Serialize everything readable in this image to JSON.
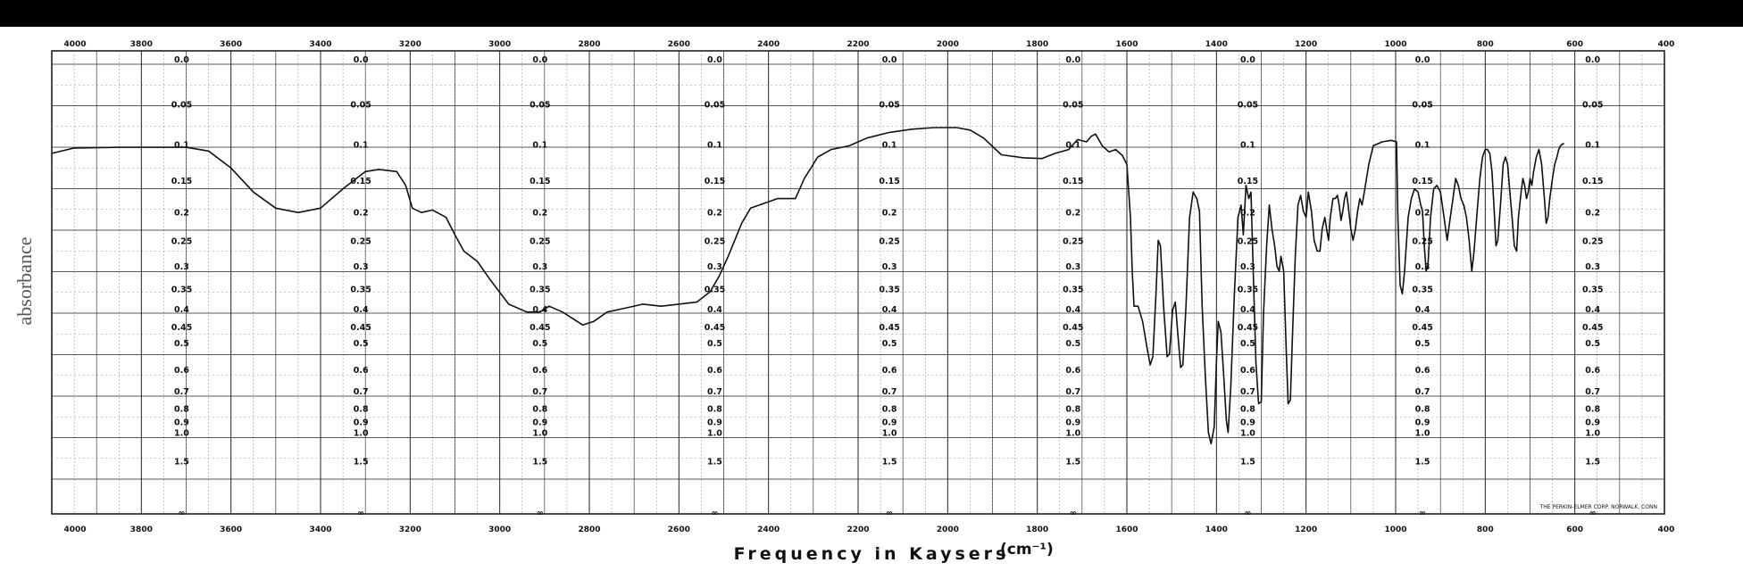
{
  "chart_data": {
    "type": "line",
    "title": "",
    "xlabel": "Frequency in Kaysers",
    "xlabel_unit": "(cm⁻¹)",
    "ylabel": "absorbance",
    "credit": "THE PERKIN-ELMER CORP. NORWALK, CONN",
    "x_reversed": true,
    "xlim": [
      4000,
      400
    ],
    "x_ticks": [
      4000,
      3800,
      3600,
      3400,
      3200,
      3000,
      2800,
      2600,
      2400,
      2200,
      2000,
      1800,
      1600,
      1400,
      1200,
      1000,
      800,
      600,
      400
    ],
    "y_ticks": [
      {
        "label": "0.0",
        "v": 0.0
      },
      {
        "label": "0.05",
        "v": 0.05
      },
      {
        "label": "0.1",
        "v": 0.1
      },
      {
        "label": "0.15",
        "v": 0.15
      },
      {
        "label": "0.2",
        "v": 0.2
      },
      {
        "label": "0.25",
        "v": 0.25
      },
      {
        "label": "0.3",
        "v": 0.3
      },
      {
        "label": "0.35",
        "v": 0.35
      },
      {
        "label": "0.4",
        "v": 0.4
      },
      {
        "label": "0.45",
        "v": 0.45
      },
      {
        "label": "0.5",
        "v": 0.5
      },
      {
        "label": "0.6",
        "v": 0.6
      },
      {
        "label": "0.7",
        "v": 0.7
      },
      {
        "label": "0.8",
        "v": 0.8
      },
      {
        "label": "0.9",
        "v": 0.9
      },
      {
        "label": "1.0",
        "v": 1.0
      },
      {
        "label": "1.5",
        "v": 1.5
      },
      {
        "label": "∞",
        "v": 2.0
      }
    ],
    "y_label_columns_at_x": [
      3710,
      3310,
      2910,
      2520,
      2130,
      1720,
      1330,
      940,
      560
    ],
    "grid": true,
    "series": [
      {
        "color": "#111111",
        "points": [
          [
            4000,
            0.105
          ],
          [
            3950,
            0.098
          ],
          [
            3850,
            0.097
          ],
          [
            3750,
            0.097
          ],
          [
            3700,
            0.097
          ],
          [
            3650,
            0.102
          ],
          [
            3600,
            0.125
          ],
          [
            3550,
            0.16
          ],
          [
            3500,
            0.185
          ],
          [
            3450,
            0.192
          ],
          [
            3400,
            0.185
          ],
          [
            3350,
            0.155
          ],
          [
            3300,
            0.13
          ],
          [
            3270,
            0.127
          ],
          [
            3230,
            0.13
          ],
          [
            3210,
            0.15
          ],
          [
            3195,
            0.185
          ],
          [
            3175,
            0.192
          ],
          [
            3150,
            0.188
          ],
          [
            3120,
            0.2
          ],
          [
            3100,
            0.23
          ],
          [
            3080,
            0.26
          ],
          [
            3050,
            0.28
          ],
          [
            3020,
            0.32
          ],
          [
            2980,
            0.375
          ],
          [
            2940,
            0.395
          ],
          [
            2910,
            0.395
          ],
          [
            2890,
            0.38
          ],
          [
            2860,
            0.395
          ],
          [
            2840,
            0.41
          ],
          [
            2815,
            0.43
          ],
          [
            2790,
            0.42
          ],
          [
            2760,
            0.395
          ],
          [
            2720,
            0.385
          ],
          [
            2680,
            0.375
          ],
          [
            2640,
            0.38
          ],
          [
            2600,
            0.375
          ],
          [
            2560,
            0.37
          ],
          [
            2530,
            0.345
          ],
          [
            2510,
            0.31
          ],
          [
            2490,
            0.27
          ],
          [
            2460,
            0.21
          ],
          [
            2440,
            0.185
          ],
          [
            2420,
            0.18
          ],
          [
            2380,
            0.17
          ],
          [
            2340,
            0.17
          ],
          [
            2320,
            0.14
          ],
          [
            2290,
            0.11
          ],
          [
            2260,
            0.1
          ],
          [
            2220,
            0.095
          ],
          [
            2180,
            0.085
          ],
          [
            2130,
            0.078
          ],
          [
            2080,
            0.074
          ],
          [
            2030,
            0.072
          ],
          [
            1980,
            0.072
          ],
          [
            1950,
            0.075
          ],
          [
            1920,
            0.085
          ],
          [
            1880,
            0.107
          ],
          [
            1830,
            0.111
          ],
          [
            1790,
            0.112
          ],
          [
            1760,
            0.105
          ],
          [
            1730,
            0.1
          ],
          [
            1710,
            0.087
          ],
          [
            1690,
            0.09
          ],
          [
            1680,
            0.083
          ],
          [
            1670,
            0.08
          ],
          [
            1655,
            0.095
          ],
          [
            1640,
            0.103
          ],
          [
            1625,
            0.1
          ],
          [
            1610,
            0.108
          ],
          [
            1600,
            0.12
          ],
          [
            1592,
            0.2
          ],
          [
            1588,
            0.3
          ],
          [
            1584,
            0.38
          ],
          [
            1575,
            0.38
          ],
          [
            1565,
            0.42
          ],
          [
            1555,
            0.5
          ],
          [
            1548,
            0.56
          ],
          [
            1542,
            0.53
          ],
          [
            1535,
            0.35
          ],
          [
            1530,
            0.24
          ],
          [
            1525,
            0.25
          ],
          [
            1518,
            0.38
          ],
          [
            1510,
            0.53
          ],
          [
            1505,
            0.52
          ],
          [
            1498,
            0.39
          ],
          [
            1492,
            0.37
          ],
          [
            1486,
            0.46
          ],
          [
            1480,
            0.57
          ],
          [
            1475,
            0.56
          ],
          [
            1468,
            0.38
          ],
          [
            1460,
            0.2
          ],
          [
            1452,
            0.16
          ],
          [
            1444,
            0.17
          ],
          [
            1438,
            0.19
          ],
          [
            1432,
            0.38
          ],
          [
            1425,
            0.6
          ],
          [
            1418,
            0.95
          ],
          [
            1412,
            1.07
          ],
          [
            1405,
            0.9
          ],
          [
            1400,
            0.55
          ],
          [
            1396,
            0.42
          ],
          [
            1390,
            0.45
          ],
          [
            1384,
            0.6
          ],
          [
            1378,
            0.85
          ],
          [
            1374,
            0.95
          ],
          [
            1368,
            0.65
          ],
          [
            1360,
            0.35
          ],
          [
            1352,
            0.2
          ],
          [
            1345,
            0.18
          ],
          [
            1340,
            0.23
          ],
          [
            1334,
            0.15
          ],
          [
            1328,
            0.17
          ],
          [
            1323,
            0.16
          ],
          [
            1318,
            0.3
          ],
          [
            1312,
            0.55
          ],
          [
            1306,
            0.74
          ],
          [
            1300,
            0.73
          ],
          [
            1295,
            0.4
          ],
          [
            1288,
            0.25
          ],
          [
            1282,
            0.18
          ],
          [
            1276,
            0.22
          ],
          [
            1270,
            0.25
          ],
          [
            1265,
            0.29
          ],
          [
            1260,
            0.3
          ],
          [
            1256,
            0.27
          ],
          [
            1250,
            0.3
          ],
          [
            1244,
            0.52
          ],
          [
            1240,
            0.74
          ],
          [
            1235,
            0.72
          ],
          [
            1230,
            0.45
          ],
          [
            1224,
            0.27
          ],
          [
            1218,
            0.18
          ],
          [
            1212,
            0.165
          ],
          [
            1206,
            0.19
          ],
          [
            1200,
            0.2
          ],
          [
            1195,
            0.16
          ],
          [
            1188,
            0.19
          ],
          [
            1182,
            0.24
          ],
          [
            1175,
            0.26
          ],
          [
            1169,
            0.26
          ],
          [
            1164,
            0.22
          ],
          [
            1158,
            0.2
          ],
          [
            1154,
            0.22
          ],
          [
            1150,
            0.24
          ],
          [
            1146,
            0.2
          ],
          [
            1140,
            0.17
          ],
          [
            1135,
            0.17
          ],
          [
            1130,
            0.165
          ],
          [
            1126,
            0.18
          ],
          [
            1122,
            0.205
          ],
          [
            1118,
            0.19
          ],
          [
            1114,
            0.17
          ],
          [
            1110,
            0.16
          ],
          [
            1106,
            0.18
          ],
          [
            1100,
            0.22
          ],
          [
            1095,
            0.24
          ],
          [
            1090,
            0.22
          ],
          [
            1085,
            0.19
          ],
          [
            1080,
            0.17
          ],
          [
            1075,
            0.18
          ],
          [
            1070,
            0.16
          ],
          [
            1060,
            0.12
          ],
          [
            1050,
            0.095
          ],
          [
            1030,
            0.09
          ],
          [
            1010,
            0.088
          ],
          [
            998,
            0.09
          ],
          [
            995,
            0.2
          ],
          [
            990,
            0.33
          ],
          [
            985,
            0.35
          ],
          [
            980,
            0.3
          ],
          [
            972,
            0.2
          ],
          [
            965,
            0.17
          ],
          [
            958,
            0.155
          ],
          [
            950,
            0.16
          ],
          [
            944,
            0.18
          ],
          [
            940,
            0.19
          ],
          [
            936,
            0.25
          ],
          [
            932,
            0.3
          ],
          [
            928,
            0.29
          ],
          [
            922,
            0.2
          ],
          [
            915,
            0.155
          ],
          [
            908,
            0.15
          ],
          [
            900,
            0.16
          ],
          [
            892,
            0.2
          ],
          [
            885,
            0.24
          ],
          [
            878,
            0.2
          ],
          [
            872,
            0.17
          ],
          [
            866,
            0.14
          ],
          [
            860,
            0.15
          ],
          [
            854,
            0.17
          ],
          [
            848,
            0.18
          ],
          [
            842,
            0.2
          ],
          [
            836,
            0.24
          ],
          [
            830,
            0.3
          ],
          [
            825,
            0.26
          ],
          [
            818,
            0.19
          ],
          [
            812,
            0.14
          ],
          [
            806,
            0.11
          ],
          [
            800,
            0.1
          ],
          [
            795,
            0.1
          ],
          [
            790,
            0.105
          ],
          [
            785,
            0.13
          ],
          [
            780,
            0.19
          ],
          [
            776,
            0.25
          ],
          [
            772,
            0.24
          ],
          [
            766,
            0.18
          ],
          [
            760,
            0.12
          ],
          [
            755,
            0.11
          ],
          [
            750,
            0.12
          ],
          [
            745,
            0.16
          ],
          [
            740,
            0.2
          ],
          [
            735,
            0.25
          ],
          [
            730,
            0.26
          ],
          [
            726,
            0.2
          ],
          [
            720,
            0.16
          ],
          [
            716,
            0.14
          ],
          [
            712,
            0.15
          ],
          [
            708,
            0.17
          ],
          [
            704,
            0.16
          ],
          [
            700,
            0.14
          ],
          [
            696,
            0.15
          ],
          [
            692,
            0.13
          ],
          [
            686,
            0.11
          ],
          [
            680,
            0.1
          ],
          [
            674,
            0.12
          ],
          [
            668,
            0.17
          ],
          [
            664,
            0.21
          ],
          [
            660,
            0.2
          ],
          [
            656,
            0.17
          ],
          [
            650,
            0.14
          ],
          [
            645,
            0.12
          ],
          [
            640,
            0.11
          ],
          [
            636,
            0.1
          ],
          [
            632,
            0.095
          ],
          [
            628,
            0.093
          ],
          [
            624,
            0.092
          ]
        ]
      }
    ]
  }
}
